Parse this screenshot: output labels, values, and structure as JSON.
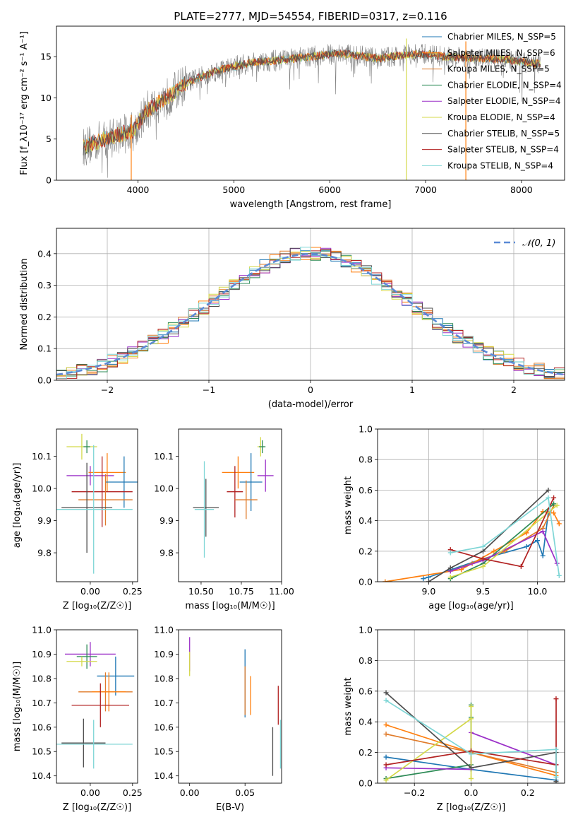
{
  "figure_title": "PLATE=2777, MJD=54554, FIBERID=0317, z=0.116",
  "colors": {
    "chabrier_miles": "#1f77b4",
    "salpeter_miles": "#ff7f0e",
    "kroupa_miles": "#e07b2a",
    "chabrier_elodie": "#2e8b57",
    "salpeter_elodie": "#9b30c8",
    "kroupa_elodie": "#d4d94a",
    "chabrier_stelib": "#4d4d4d",
    "salpeter_stelib": "#b22222",
    "kroupa_stelib": "#7fd6d6",
    "normal": "#5b8ad6",
    "spectrum_gray": "#808080"
  },
  "chart_data": [
    {
      "id": "spectrum",
      "type": "line",
      "xlabel": "wavelength [Angstrom, rest frame]",
      "ylabel": "Flux [f_λ10⁻¹⁷ erg cm⁻² s⁻¹ A⁻¹]",
      "xlim": [
        3150,
        8450
      ],
      "ylim": [
        0,
        18.7
      ],
      "xticks": [
        "4000",
        "5000",
        "6000",
        "7000",
        "8000"
      ],
      "yticks": [
        "0",
        "5",
        "10",
        "15"
      ],
      "grid": false,
      "legend_position": "right",
      "legend": [
        "Chabrier MILES, N_SSP=5",
        "Salpeter MILES, N_SSP=6",
        "Kroupa MILES, N_SSP=5",
        "Chabrier ELODIE, N_SSP=4",
        "Salpeter ELODIE, N_SSP=4",
        "Kroupa ELODIE, N_SSP=4",
        "Chabrier STELIB, N_SSP=5",
        "Salpeter STELIB, N_SSP=4",
        "Kroupa STELIB, N_SSP=4"
      ],
      "continuum": {
        "x": [
          3430,
          3600,
          3800,
          3950,
          4100,
          4300,
          4500,
          4800,
          5000,
          5200,
          5500,
          5800,
          6100,
          6500,
          6800,
          7000,
          7200,
          7500,
          7800,
          8000,
          8200
        ],
        "y": [
          4.0,
          4.8,
          5.5,
          6.0,
          8.5,
          10.0,
          11.8,
          13.2,
          13.8,
          14.3,
          14.6,
          15.0,
          15.4,
          14.8,
          15.2,
          15.3,
          15.0,
          14.8,
          14.7,
          14.4,
          14.1
        ]
      },
      "sky_spikes": [
        3930,
        6800,
        7420
      ]
    },
    {
      "id": "residuals",
      "type": "histogram",
      "xlabel": "(data-model)/error",
      "ylabel": "Normed distribution",
      "xlim": [
        -2.5,
        2.5
      ],
      "ylim": [
        0,
        0.48
      ],
      "xticks": [
        "−2",
        "−1",
        "0",
        "1",
        "2"
      ],
      "yticks": [
        "0.0",
        "0.1",
        "0.2",
        "0.3",
        "0.4"
      ],
      "grid": true,
      "legend_position": "top-right",
      "legend": [
        "𝒩(0, 1)"
      ],
      "bin_width": 0.1
    },
    {
      "id": "z_age",
      "type": "errorbar",
      "xlabel": "Z [log₁₀(Z/Z☉)]",
      "ylabel": "age  [log₁₀(age/yr)]",
      "xlim": [
        -0.2,
        0.28
      ],
      "ylim": [
        9.71,
        10.185
      ],
      "xticks": [
        "0.00",
        "0.25"
      ],
      "yticks": [
        "9.8",
        "9.9",
        "10.0",
        "10.1"
      ],
      "grid": false,
      "points": [
        {
          "c": "kroupa_elodie",
          "x": -0.05,
          "xe": 0.09,
          "y": 10.13,
          "ye": 0.04
        },
        {
          "c": "chabrier_elodie",
          "x": -0.02,
          "xe": 0.02,
          "y": 10.13,
          "ye": 0.02
        },
        {
          "c": "salpeter_elodie",
          "x": 0.0,
          "xe": 0.14,
          "y": 10.04,
          "ye": 0.03
        },
        {
          "c": "salpeter_miles",
          "x": 0.1,
          "xe": 0.11,
          "y": 10.05,
          "ye": 0.06
        },
        {
          "c": "chabrier_miles",
          "x": 0.2,
          "xe": 0.11,
          "y": 10.02,
          "ye": 0.08
        },
        {
          "c": "salpeter_stelib",
          "x": 0.07,
          "xe": 0.18,
          "y": 9.99,
          "ye": 0.11
        },
        {
          "c": "kroupa_miles",
          "x": 0.09,
          "xe": 0.16,
          "y": 9.965,
          "ye": 0.08
        },
        {
          "c": "chabrier_stelib",
          "x": -0.02,
          "xe": 0.15,
          "y": 9.94,
          "ye": 0.14
        },
        {
          "c": "kroupa_stelib",
          "x": 0.02,
          "xe": 0.23,
          "y": 9.935,
          "ye": 0.2
        }
      ]
    },
    {
      "id": "mass_age",
      "type": "errorbar",
      "xlabel": "mass [log₁₀(M/M☉)]",
      "ylabel": "",
      "xlim": [
        10.36,
        11.0
      ],
      "ylim": [
        9.71,
        10.185
      ],
      "xticks": [
        "10.50",
        "10.75",
        "11.00"
      ],
      "yticks": [
        "9.8",
        "9.9",
        "10.0",
        "10.1"
      ],
      "grid": false,
      "points": [
        {
          "c": "kroupa_elodie",
          "x": 10.87,
          "xe": 0.02,
          "y": 10.13,
          "ye": 0.03
        },
        {
          "c": "chabrier_elodie",
          "x": 10.88,
          "xe": 0.02,
          "y": 10.13,
          "ye": 0.02
        },
        {
          "c": "salpeter_elodie",
          "x": 10.9,
          "xe": 0.05,
          "y": 10.04,
          "ye": 0.05
        },
        {
          "c": "salpeter_miles",
          "x": 10.73,
          "xe": 0.1,
          "y": 10.05,
          "ye": 0.05
        },
        {
          "c": "chabrier_miles",
          "x": 10.81,
          "xe": 0.07,
          "y": 10.02,
          "ye": 0.09
        },
        {
          "c": "salpeter_stelib",
          "x": 10.71,
          "xe": 0.05,
          "y": 9.99,
          "ye": 0.08
        },
        {
          "c": "kroupa_miles",
          "x": 10.78,
          "xe": 0.07,
          "y": 9.965,
          "ye": 0.06
        },
        {
          "c": "chabrier_stelib",
          "x": 10.53,
          "xe": 0.08,
          "y": 9.94,
          "ye": 0.09
        },
        {
          "c": "kroupa_stelib",
          "x": 10.52,
          "xe": 0.06,
          "y": 9.935,
          "ye": 0.15
        }
      ]
    },
    {
      "id": "age_weight",
      "type": "line",
      "xlabel": "age  [log₁₀(age/yr)]",
      "ylabel": "mass weight",
      "xlim": [
        8.53,
        10.25
      ],
      "ylim": [
        0,
        1.0
      ],
      "xticks": [
        "9.0",
        "9.5",
        "10.0"
      ],
      "yticks": [
        "0.0",
        "0.2",
        "0.4",
        "0.6",
        "0.8",
        "1.0"
      ],
      "grid": true,
      "series": [
        {
          "c": "chabrier_miles",
          "x": [
            8.95,
            9.0,
            9.5,
            9.9,
            10.0,
            10.05,
            10.1
          ],
          "y": [
            0.02,
            0.03,
            0.15,
            0.23,
            0.27,
            0.17,
            0.45
          ]
        },
        {
          "c": "salpeter_miles",
          "x": [
            8.6,
            9.3,
            9.6,
            9.9,
            10.05,
            10.15,
            10.2
          ],
          "y": [
            0.0,
            0.08,
            0.2,
            0.32,
            0.46,
            0.45,
            0.38
          ]
        },
        {
          "c": "kroupa_miles",
          "x": [
            9.2,
            9.4,
            9.7,
            10.05,
            10.15
          ],
          "y": [
            0.07,
            0.12,
            0.2,
            0.35,
            0.5
          ]
        },
        {
          "c": "chabrier_elodie",
          "x": [
            9.2,
            9.5,
            10.15
          ],
          "y": [
            0.02,
            0.12,
            0.51
          ]
        },
        {
          "c": "salpeter_elodie",
          "x": [
            9.2,
            9.5,
            10.05,
            10.18
          ],
          "y": [
            0.07,
            0.14,
            0.33,
            0.12
          ]
        },
        {
          "c": "kroupa_elodie",
          "x": [
            9.2,
            9.5,
            10.18
          ],
          "y": [
            0.03,
            0.1,
            0.5
          ]
        },
        {
          "c": "chabrier_stelib",
          "x": [
            9.0,
            9.2,
            9.5,
            10.1
          ],
          "y": [
            0.0,
            0.09,
            0.2,
            0.6
          ]
        },
        {
          "c": "salpeter_stelib",
          "x": [
            9.2,
            9.5,
            9.85,
            10.15
          ],
          "y": [
            0.21,
            0.15,
            0.1,
            0.55
          ]
        },
        {
          "c": "kroupa_stelib",
          "x": [
            9.2,
            9.5,
            10.1,
            10.2
          ],
          "y": [
            0.19,
            0.23,
            0.55,
            0.04
          ]
        }
      ]
    },
    {
      "id": "z_mass",
      "type": "errorbar",
      "xlabel": "Z [log₁₀(Z/Z☉)]",
      "ylabel": "mass [log₁₀(M/M☉)]",
      "xlim": [
        -0.2,
        0.28
      ],
      "ylim": [
        10.37,
        11.0
      ],
      "xticks": [
        "0.00",
        "0.25"
      ],
      "yticks": [
        "10.4",
        "10.5",
        "10.6",
        "10.7",
        "10.8",
        "10.9",
        "11.0"
      ],
      "grid": false,
      "points": [
        {
          "c": "salpeter_elodie",
          "x": 0.0,
          "xe": 0.15,
          "y": 10.9,
          "ye": 0.05
        },
        {
          "c": "chabrier_elodie",
          "x": -0.02,
          "xe": 0.06,
          "y": 10.89,
          "ye": 0.05
        },
        {
          "c": "kroupa_elodie",
          "x": -0.05,
          "xe": 0.09,
          "y": 10.87,
          "ye": 0.02
        },
        {
          "c": "chabrier_miles",
          "x": 0.15,
          "xe": 0.11,
          "y": 10.81,
          "ye": 0.08
        },
        {
          "c": "kroupa_miles",
          "x": 0.09,
          "xe": 0.16,
          "y": 10.745,
          "ye": 0.08
        },
        {
          "c": "salpeter_miles",
          "x": 0.11,
          "xe": 0.1,
          "y": 10.745,
          "ye": 0.08
        },
        {
          "c": "salpeter_stelib",
          "x": 0.06,
          "xe": 0.17,
          "y": 10.69,
          "ye": 0.09
        },
        {
          "c": "chabrier_stelib",
          "x": -0.04,
          "xe": 0.13,
          "y": 10.535,
          "ye": 0.1
        },
        {
          "c": "kroupa_stelib",
          "x": 0.02,
          "xe": 0.23,
          "y": 10.53,
          "ye": 0.1
        }
      ]
    },
    {
      "id": "ebv_mass",
      "type": "errorbar",
      "xlabel": "E(B-V)",
      "ylabel": "",
      "xlim": [
        -0.01,
        0.083
      ],
      "ylim": [
        10.37,
        11.0
      ],
      "xticks": [
        "0.00",
        "0.05"
      ],
      "yticks": [
        "10.4",
        "10.5",
        "10.6",
        "10.7",
        "10.8",
        "10.9",
        "11.0"
      ],
      "grid": false,
      "points": [
        {
          "c": "salpeter_elodie",
          "x": 0.0,
          "xe": 0.0,
          "y": 10.9,
          "ye": 0.07
        },
        {
          "c": "kroupa_elodie",
          "x": 0.0,
          "xe": 0.0,
          "y": 10.86,
          "ye": 0.05
        },
        {
          "c": "chabrier_miles",
          "x": 0.05,
          "xe": 0.0,
          "y": 10.78,
          "ye": 0.14
        },
        {
          "c": "kroupa_miles",
          "x": 0.05,
          "xe": 0.0,
          "y": 10.75,
          "ye": 0.1
        },
        {
          "c": "salpeter_miles",
          "x": 0.055,
          "xe": 0.0,
          "y": 10.73,
          "ye": 0.08
        },
        {
          "c": "salpeter_stelib",
          "x": 0.08,
          "xe": 0.0,
          "y": 10.69,
          "ye": 0.08
        },
        {
          "c": "chabrier_stelib",
          "x": 0.075,
          "xe": 0.0,
          "y": 10.5,
          "ye": 0.1
        },
        {
          "c": "kroupa_stelib",
          "x": 0.082,
          "xe": 0.0,
          "y": 10.53,
          "ye": 0.1
        }
      ]
    },
    {
      "id": "z_weight",
      "type": "line",
      "xlabel": "Z [log₁₀(Z/Z☉)]",
      "ylabel": "mass weight",
      "xlim": [
        -0.33,
        0.33
      ],
      "ylim": [
        0,
        1.0
      ],
      "xticks": [
        "−0.2",
        "0.0",
        "0.2"
      ],
      "yticks": [
        "0.0",
        "0.2",
        "0.4",
        "0.6",
        "0.8",
        "1.0"
      ],
      "grid": true,
      "series": [
        {
          "c": "chabrier_miles",
          "x": [
            -0.3,
            0.0,
            0.3
          ],
          "y": [
            0.17,
            0.09,
            0.02
          ]
        },
        {
          "c": "salpeter_miles",
          "x": [
            -0.3,
            0.0,
            0.3
          ],
          "y": [
            0.38,
            0.2,
            0.05
          ]
        },
        {
          "c": "kroupa_miles",
          "x": [
            -0.3,
            0.0,
            0.3
          ],
          "y": [
            0.32,
            0.2,
            0.07
          ]
        },
        {
          "c": "chabrier_elodie",
          "x": [
            -0.3,
            0.0,
            0.0,
            0.0
          ],
          "y": [
            0.03,
            0.12,
            0.51,
            0.43
          ]
        },
        {
          "c": "salpeter_elodie",
          "x": [
            -0.3,
            0.0,
            0.0,
            0.3
          ],
          "y": [
            0.1,
            0.09,
            0.33,
            0.12
          ]
        },
        {
          "c": "kroupa_elodie",
          "x": [
            -0.3,
            0.0,
            0.0,
            0.0
          ],
          "y": [
            0.02,
            0.42,
            0.5,
            0.03
          ]
        },
        {
          "c": "chabrier_stelib",
          "x": [
            -0.3,
            0.0,
            0.3,
            0.3
          ],
          "y": [
            0.59,
            0.1,
            0.2,
            0.01
          ]
        },
        {
          "c": "salpeter_stelib",
          "x": [
            -0.3,
            0.0,
            0.3,
            0.3
          ],
          "y": [
            0.12,
            0.21,
            0.12,
            0.55
          ]
        },
        {
          "c": "kroupa_stelib",
          "x": [
            -0.3,
            0.0,
            0.3,
            0.3
          ],
          "y": [
            0.54,
            0.19,
            0.22,
            0.04
          ]
        }
      ]
    }
  ]
}
